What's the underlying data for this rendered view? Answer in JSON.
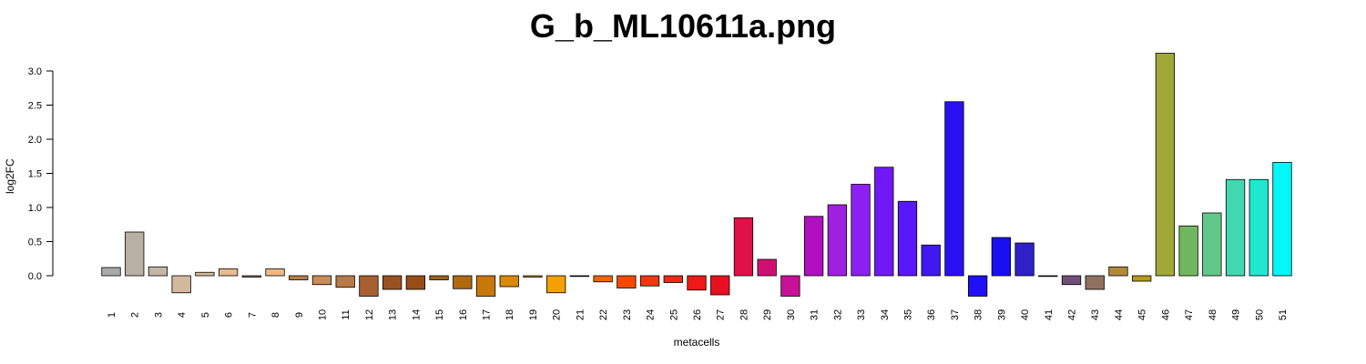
{
  "chart_data": {
    "type": "bar",
    "title": "G_b_ML10611a.png",
    "xlabel": "metacells",
    "ylabel": "log2FC",
    "ylim": [
      -0.31,
      3.3
    ],
    "yticks": [
      0.0,
      0.5,
      1.0,
      1.5,
      2.0,
      2.5,
      3.0
    ],
    "ytick_labels": [
      "0.0",
      "0.5",
      "1.0",
      "1.5",
      "2.0",
      "2.5",
      "3.0"
    ],
    "grid": false,
    "categories": [
      "1",
      "2",
      "3",
      "4",
      "5",
      "6",
      "7",
      "8",
      "9",
      "10",
      "11",
      "12",
      "13",
      "14",
      "15",
      "16",
      "17",
      "18",
      "19",
      "20",
      "21",
      "22",
      "23",
      "24",
      "25",
      "26",
      "27",
      "28",
      "29",
      "30",
      "31",
      "32",
      "33",
      "34",
      "35",
      "36",
      "37",
      "38",
      "39",
      "40",
      "41",
      "42",
      "43",
      "44",
      "45",
      "46",
      "47",
      "48",
      "49",
      "50",
      "51"
    ],
    "values": [
      0.12,
      0.64,
      0.13,
      -0.25,
      0.05,
      0.1,
      -0.02,
      0.1,
      -0.06,
      -0.13,
      -0.17,
      -0.3,
      -0.2,
      -0.2,
      -0.06,
      -0.19,
      -0.3,
      -0.16,
      -0.02,
      -0.25,
      -0.01,
      -0.09,
      -0.18,
      -0.15,
      -0.1,
      -0.21,
      -0.28,
      0.85,
      0.24,
      -0.3,
      0.87,
      1.04,
      1.34,
      1.59,
      1.09,
      0.45,
      2.55,
      -0.3,
      0.56,
      0.48,
      -0.01,
      -0.13,
      -0.2,
      0.13,
      -0.08,
      3.26,
      0.73,
      0.92,
      1.41,
      1.41,
      1.66
    ],
    "colors": [
      "#aaaaaa",
      "#b8b0a4",
      "#c4b6a6",
      "#d2b89c",
      "#dab994",
      "#e7bc8e",
      "#a08060",
      "#f0b880",
      "#b88040",
      "#c88c58",
      "#b87a48",
      "#a86030",
      "#985220",
      "#984c18",
      "#a0601c",
      "#b06a10",
      "#c87808",
      "#d88a08",
      "#e09808",
      "#f4a000",
      "#f48000",
      "#f46400",
      "#f44800",
      "#f03810",
      "#f02818",
      "#f01818",
      "#e81020",
      "#e01048",
      "#d01070",
      "#c81098",
      "#b010c0",
      "#a020e0",
      "#8c20f0",
      "#7018f8",
      "#5818f8",
      "#4018f0",
      "#2810f0",
      "#2010f8",
      "#1810f0",
      "#3020c8",
      "#583c98",
      "#705078",
      "#907060",
      "#b08a38",
      "#b89a18",
      "#a0a838",
      "#70b860",
      "#60c888",
      "#40d8b0",
      "#20e8d0",
      "#00f8f8"
    ]
  }
}
